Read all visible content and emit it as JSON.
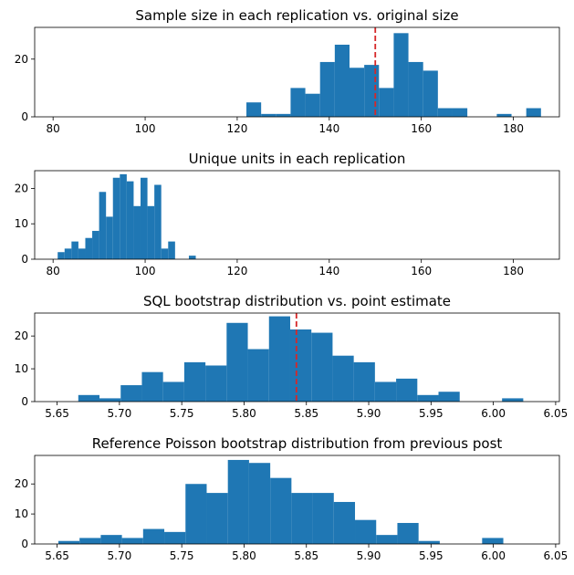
{
  "chart_data": [
    {
      "type": "histogram",
      "title": "Sample size in each replication vs. original size",
      "xlim": [
        76,
        190
      ],
      "ylim": [
        0,
        31
      ],
      "xticks": [
        80,
        100,
        120,
        140,
        160,
        180
      ],
      "yticks": [
        0,
        20
      ],
      "bin_edges": [
        122,
        125.2,
        128.4,
        131.6,
        134.8,
        138,
        141.2,
        144.4,
        147.6,
        150.8,
        154,
        157.2,
        160.4,
        163.6,
        166.8,
        170,
        173.2,
        176.4,
        179.6,
        182.8,
        186,
        189.2
      ],
      "counts": [
        5,
        1,
        1,
        10,
        8,
        19,
        25,
        17,
        18,
        10,
        29,
        19,
        16,
        3,
        3,
        0,
        0,
        1,
        0,
        3,
        0
      ],
      "reference_line": 150
    },
    {
      "type": "histogram",
      "title": "Unique units in each replication",
      "xlim": [
        76,
        190
      ],
      "ylim": [
        0,
        25
      ],
      "xticks": [
        80,
        100,
        120,
        140,
        160,
        180
      ],
      "yticks": [
        0,
        10,
        20
      ],
      "bin_edges": [
        81,
        82.5,
        84,
        85.5,
        87,
        88.5,
        90,
        91.5,
        93,
        94.5,
        96,
        97.5,
        99,
        100.5,
        102,
        103.5,
        105,
        106.5,
        108,
        109.5,
        111
      ],
      "counts": [
        2,
        3,
        5,
        3,
        6,
        8,
        19,
        12,
        23,
        24,
        22,
        15,
        23,
        15,
        21,
        3,
        5,
        0,
        0,
        1
      ],
      "reference_line": null
    },
    {
      "type": "histogram",
      "title": "SQL bootstrap distribution vs. point estimate",
      "xlim": [
        5.632,
        6.053
      ],
      "ylim": [
        0,
        27
      ],
      "xticks": [
        5.65,
        5.7,
        5.75,
        5.8,
        5.85,
        5.9,
        5.95,
        6.0,
        6.05
      ],
      "yticks": [
        0,
        10,
        20
      ],
      "bin_edges": [
        5.667,
        5.684,
        5.701,
        5.718,
        5.735,
        5.752,
        5.769,
        5.786,
        5.803,
        5.82,
        5.837,
        5.854,
        5.871,
        5.888,
        5.905,
        5.922,
        5.939,
        5.956,
        5.973,
        5.99,
        6.007,
        6.024,
        6.041
      ],
      "counts": [
        2,
        1,
        5,
        9,
        6,
        12,
        11,
        24,
        16,
        26,
        22,
        21,
        14,
        12,
        6,
        7,
        2,
        3,
        0,
        0,
        1,
        0
      ],
      "reference_line": 5.842
    },
    {
      "type": "histogram",
      "title": "Reference Poisson bootstrap distribution from previous post",
      "xlim": [
        5.632,
        6.053
      ],
      "ylim": [
        0,
        29.5
      ],
      "xticks": [
        5.65,
        5.7,
        5.75,
        5.8,
        5.85,
        5.9,
        5.95,
        6.0,
        6.05
      ],
      "yticks": [
        0,
        10,
        20
      ],
      "bin_edges": [
        5.651,
        5.668,
        5.685,
        5.702,
        5.719,
        5.736,
        5.753,
        5.77,
        5.787,
        5.804,
        5.821,
        5.838,
        5.855,
        5.872,
        5.889,
        5.906,
        5.923,
        5.94,
        5.957,
        5.974,
        5.991,
        6.008,
        6.025,
        6.042
      ],
      "counts": [
        1,
        2,
        3,
        2,
        5,
        4,
        20,
        17,
        28,
        27,
        22,
        17,
        17,
        14,
        8,
        3,
        7,
        1,
        0,
        0,
        2,
        0,
        0
      ],
      "reference_line": null
    }
  ],
  "colors": {
    "bars": "#1f77b4",
    "reference_line": "#d62728"
  }
}
